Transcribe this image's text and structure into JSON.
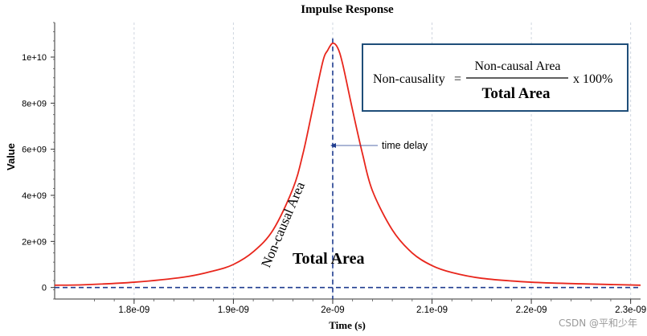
{
  "chart_data": {
    "type": "line",
    "title": "Impulse Response",
    "xlabel": "Time (s)",
    "ylabel": "Value",
    "xlim": [
      1.72e-09,
      2.31e-09
    ],
    "ylim": [
      -500000000.0,
      11500000000.0
    ],
    "x_ticks": [
      1.8e-09,
      1.9e-09,
      2e-09,
      2.1e-09,
      2.2e-09,
      2.3e-09
    ],
    "x_tick_labels": [
      "1.8e-09",
      "1.9e-09",
      "2e-09",
      "2.1e-09",
      "2.2e-09",
      "2.3e-09"
    ],
    "y_ticks": [
      0,
      2000000000.0,
      4000000000.0,
      6000000000.0,
      8000000000.0,
      10000000000.0
    ],
    "y_tick_labels": [
      "0",
      "2e+09",
      "4e+09",
      "6e+09",
      "8e+09",
      "1e+10"
    ],
    "series": [
      {
        "name": "impulse response",
        "color": "#e8261c",
        "peak_time": 2e-09,
        "x": [
          1.72e-09,
          1.75e-09,
          1.8e-09,
          1.85e-09,
          1.88e-09,
          1.9e-09,
          1.92e-09,
          1.94e-09,
          1.96e-09,
          1.97e-09,
          1.98e-09,
          1.99e-09,
          1.995e-09,
          2e-09,
          2.005e-09,
          2.01e-09,
          2.02e-09,
          2.03e-09,
          2.04e-09,
          2.06e-09,
          2.08e-09,
          2.1e-09,
          2.12e-09,
          2.15e-09,
          2.2e-09,
          2.25e-09,
          2.31e-09
        ],
        "values": [
          100000000.0,
          120000000.0,
          230000000.0,
          450000000.0,
          720000000.0,
          1000000000.0,
          1550000000.0,
          2500000000.0,
          4300000000.0,
          5800000000.0,
          7800000000.0,
          9800000000.0,
          10300000000.0,
          10600000000.0,
          10400000000.0,
          9700000000.0,
          7700000000.0,
          5800000000.0,
          4200000000.0,
          2500000000.0,
          1500000000.0,
          950000000.0,
          650000000.0,
          400000000.0,
          230000000.0,
          160000000.0,
          100000000.0
        ]
      }
    ],
    "annotations": {
      "time_delay_label": "time delay",
      "non_causal_area_label": "Non-causal Area",
      "total_area_label": "Total Area",
      "formula": {
        "lhs": "Non-causality",
        "equals": "=",
        "numerator": "Non-causal Area",
        "denominator": "Total Area",
        "multiplier": "x 100%"
      }
    },
    "grid": "x-dashed",
    "legend": "none"
  },
  "watermark": "CSDN @平和少年",
  "colors": {
    "curve": "#e8261c",
    "guide": "#1f3c8f",
    "formula_border": "#1f4e79",
    "grid": "#cfd6df"
  }
}
